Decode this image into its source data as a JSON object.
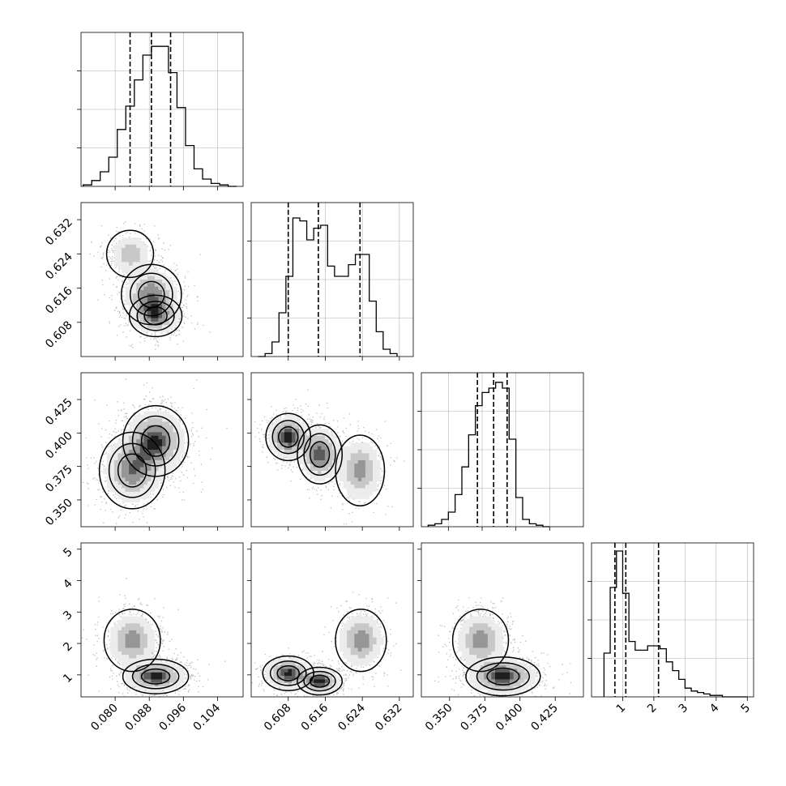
{
  "figure": {
    "kind": "corner-plot",
    "n_params": 4,
    "colors": {
      "line": "#000000",
      "grid": "#b0b0b0",
      "frame": "#000000",
      "background": "#ffffff"
    },
    "grid": true
  },
  "chart_data": [
    {
      "type": "histogram",
      "panel": "diag-1",
      "ylim": [
        0,
        1
      ],
      "xlim": [
        0.072,
        0.11
      ],
      "bin_edges": [
        0.0725,
        0.0745,
        0.0765,
        0.0785,
        0.0805,
        0.0825,
        0.0845,
        0.0865,
        0.0885,
        0.0905,
        0.0925,
        0.0945,
        0.0965,
        0.0985,
        0.1005,
        0.1025,
        0.1045,
        0.1065,
        0.1085
      ],
      "counts": [
        0.01,
        0.04,
        0.1,
        0.2,
        0.39,
        0.55,
        0.73,
        0.9,
        0.96,
        0.96,
        0.78,
        0.54,
        0.28,
        0.12,
        0.05,
        0.02,
        0.01,
        0.0
      ],
      "quantile_lines": [
        0.0835,
        0.0885,
        0.093
      ]
    },
    {
      "type": "histogram",
      "panel": "diag-2",
      "ylim": [
        0,
        1
      ],
      "xlim": [
        0.6,
        0.635
      ],
      "bin_edges": [
        0.6015,
        0.603,
        0.6045,
        0.606,
        0.6075,
        0.609,
        0.6105,
        0.612,
        0.6135,
        0.615,
        0.6165,
        0.618,
        0.6195,
        0.621,
        0.6225,
        0.624,
        0.6255,
        0.627,
        0.6285,
        0.63,
        0.6315
      ],
      "counts": [
        0.0,
        0.02,
        0.1,
        0.3,
        0.55,
        0.95,
        0.93,
        0.8,
        0.88,
        0.9,
        0.62,
        0.55,
        0.55,
        0.63,
        0.7,
        0.7,
        0.38,
        0.17,
        0.05,
        0.02
      ],
      "quantile_lines": [
        0.608,
        0.6145,
        0.6235
      ]
    },
    {
      "type": "histogram",
      "panel": "diag-3",
      "ylim": [
        0,
        1
      ],
      "xlim": [
        0.33,
        0.45
      ],
      "bin_edges": [
        0.335,
        0.34,
        0.345,
        0.35,
        0.355,
        0.36,
        0.365,
        0.37,
        0.375,
        0.38,
        0.385,
        0.39,
        0.395,
        0.4,
        0.405,
        0.41,
        0.415,
        0.42,
        0.425
      ],
      "counts": [
        0.01,
        0.02,
        0.05,
        0.1,
        0.22,
        0.41,
        0.63,
        0.83,
        0.92,
        0.95,
        0.99,
        0.95,
        0.6,
        0.2,
        0.05,
        0.02,
        0.01,
        0.0
      ],
      "quantile_lines": [
        0.3715,
        0.3835,
        0.3935
      ]
    },
    {
      "type": "histogram",
      "panel": "diag-4",
      "ylim": [
        0,
        1
      ],
      "xlim": [
        0.0,
        5.2
      ],
      "bin_edges": [
        0.4,
        0.6,
        0.8,
        1.0,
        1.2,
        1.4,
        1.6,
        1.8,
        2.0,
        2.2,
        2.4,
        2.6,
        2.8,
        3.0,
        3.2,
        3.4,
        3.6,
        3.8,
        4.0,
        4.2,
        4.4,
        4.6,
        4.8,
        5.0
      ],
      "counts": [
        0.3,
        0.75,
        1.0,
        0.71,
        0.38,
        0.32,
        0.32,
        0.35,
        0.35,
        0.33,
        0.24,
        0.18,
        0.12,
        0.06,
        0.04,
        0.03,
        0.02,
        0.01,
        0.01,
        0.0,
        0.0,
        0.0,
        0.0
      ],
      "quantile_lines": [
        0.75,
        1.1,
        2.15
      ]
    },
    {
      "type": "contour-density",
      "panel": "row2-col1",
      "xlim": [
        0.072,
        0.11
      ],
      "ylim": [
        0.6,
        0.636
      ],
      "modes": [
        {
          "x": 0.0835,
          "y": 0.624,
          "sx": 0.0025,
          "sy": 0.0025,
          "w": 0.7
        },
        {
          "x": 0.0885,
          "y": 0.6145,
          "sx": 0.0032,
          "sy": 0.0032,
          "w": 1.0
        },
        {
          "x": 0.0895,
          "y": 0.6095,
          "sx": 0.0028,
          "sy": 0.0022,
          "w": 1.0
        }
      ]
    },
    {
      "type": "contour-density",
      "panel": "row3-col1",
      "xlim": [
        0.072,
        0.11
      ],
      "ylim": [
        0.33,
        0.445
      ],
      "modes": [
        {
          "x": 0.0895,
          "y": 0.394,
          "sx": 0.0035,
          "sy": 0.012,
          "w": 1.0
        },
        {
          "x": 0.084,
          "y": 0.372,
          "sx": 0.0035,
          "sy": 0.013,
          "w": 0.8
        }
      ]
    },
    {
      "type": "contour-density",
      "panel": "row3-col2",
      "xlim": [
        0.6,
        0.635
      ],
      "ylim": [
        0.33,
        0.445
      ],
      "modes": [
        {
          "x": 0.608,
          "y": 0.397,
          "sx": 0.0022,
          "sy": 0.008,
          "w": 1.0
        },
        {
          "x": 0.6148,
          "y": 0.384,
          "sx": 0.0022,
          "sy": 0.01,
          "w": 0.9
        },
        {
          "x": 0.6235,
          "y": 0.372,
          "sx": 0.0024,
          "sy": 0.012,
          "w": 0.7
        }
      ]
    },
    {
      "type": "contour-density",
      "panel": "row4-col1",
      "xlim": [
        0.072,
        0.11
      ],
      "ylim": [
        0.3,
        5.2
      ],
      "modes": [
        {
          "x": 0.084,
          "y": 2.1,
          "sx": 0.003,
          "sy": 0.45,
          "w": 0.7
        },
        {
          "x": 0.0895,
          "y": 0.95,
          "sx": 0.0035,
          "sy": 0.25,
          "w": 1.0
        }
      ]
    },
    {
      "type": "contour-density",
      "panel": "row4-col2",
      "xlim": [
        0.6,
        0.635
      ],
      "ylim": [
        0.3,
        5.2
      ],
      "modes": [
        {
          "x": 0.608,
          "y": 1.05,
          "sx": 0.0025,
          "sy": 0.25,
          "w": 1.0
        },
        {
          "x": 0.6148,
          "y": 0.8,
          "sx": 0.0022,
          "sy": 0.2,
          "w": 1.0
        },
        {
          "x": 0.6237,
          "y": 2.1,
          "sx": 0.0025,
          "sy": 0.45,
          "w": 0.75
        }
      ]
    },
    {
      "type": "contour-density",
      "panel": "row4-col3",
      "xlim": [
        0.33,
        0.445
      ],
      "ylim": [
        0.3,
        5.2
      ],
      "modes": [
        {
          "x": 0.372,
          "y": 2.1,
          "sx": 0.009,
          "sy": 0.45,
          "w": 0.7
        },
        {
          "x": 0.388,
          "y": 0.95,
          "sx": 0.012,
          "sy": 0.28,
          "w": 1.0
        }
      ]
    }
  ],
  "axes": {
    "col1_x": {
      "ticks": [
        0.08,
        0.088,
        0.096,
        0.104
      ],
      "labels": [
        "0.080",
        "0.088",
        "0.096",
        "0.104"
      ]
    },
    "col2_x": {
      "ticks": [
        0.608,
        0.616,
        0.624,
        0.632
      ],
      "labels": [
        "0.608",
        "0.616",
        "0.624",
        "0.632"
      ]
    },
    "col3_x": {
      "ticks": [
        0.35,
        0.375,
        0.4,
        0.425
      ],
      "labels": [
        "0.350",
        "0.375",
        "0.400",
        "0.425"
      ]
    },
    "col4_x": {
      "ticks": [
        1,
        2,
        3,
        4,
        5
      ],
      "labels": [
        "1",
        "2",
        "3",
        "4",
        "5"
      ]
    },
    "row2_y": {
      "ticks": [
        0.608,
        0.616,
        0.624,
        0.632
      ],
      "labels": [
        "0.608",
        "0.616",
        "0.624",
        "0.632"
      ]
    },
    "row3_y": {
      "ticks": [
        0.35,
        0.375,
        0.4,
        0.425
      ],
      "labels": [
        "0.350",
        "0.375",
        "0.400",
        "0.425"
      ]
    },
    "row4_y": {
      "ticks": [
        1,
        2,
        3,
        4,
        5
      ],
      "labels": [
        "1",
        "2",
        "3",
        "4",
        "5"
      ]
    }
  }
}
